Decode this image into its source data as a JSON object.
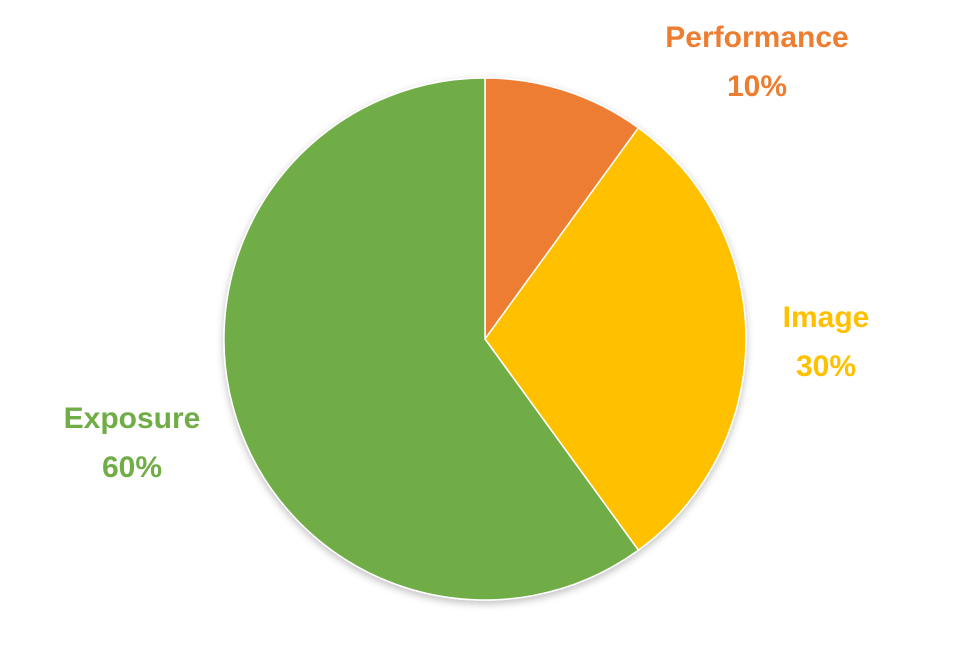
{
  "chart_data": {
    "type": "pie",
    "categories": [
      "Performance",
      "Image",
      "Exposure"
    ],
    "values": [
      10,
      30,
      60
    ],
    "value_labels": [
      "10%",
      "30%",
      "60%"
    ],
    "colors": [
      "#ED7D31",
      "#FFC000",
      "#70AD47"
    ],
    "start_angle_deg": 0,
    "direction": "clockwise",
    "title": "",
    "legend": "none"
  }
}
